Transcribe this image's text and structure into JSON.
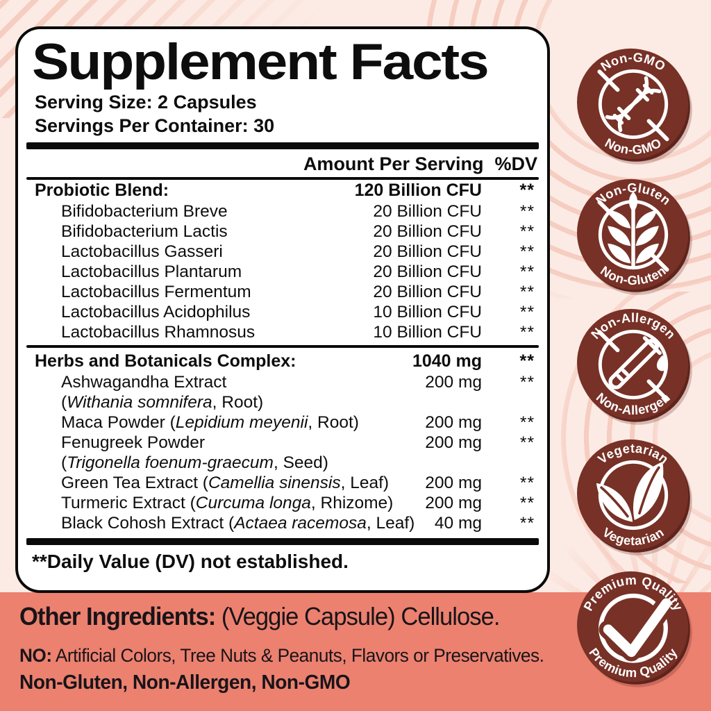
{
  "colors": {
    "page_bg": "#fcebe4",
    "decor": "#f6cdc1",
    "coral_bg": "#ec8170",
    "badge_brown": "#773126",
    "panel_border": "#0a0a0a",
    "text": "#0d0d0d"
  },
  "label": {
    "title": "Supplement Facts",
    "serving_size": "Serving Size: 2 Capsules",
    "servings_per_container": "Servings Per Container: 30",
    "amount_per_serving": "Amount Per Serving",
    "dv_header": "%DV",
    "sections": [
      {
        "header": {
          "name": "Probiotic Blend:",
          "amount": "120 Billion CFU",
          "dv": "**"
        },
        "rows": [
          {
            "name": [
              {
                "t": "Bifidobacterium Breve"
              }
            ],
            "amount": "20 Billion CFU",
            "dv": "**"
          },
          {
            "name": [
              {
                "t": "Bifidobacterium Lactis"
              }
            ],
            "amount": "20 Billion CFU",
            "dv": "**"
          },
          {
            "name": [
              {
                "t": "Lactobacillus Gasseri"
              }
            ],
            "amount": "20 Billion CFU",
            "dv": "**"
          },
          {
            "name": [
              {
                "t": "Lactobacillus Plantarum"
              }
            ],
            "amount": "20 Billion CFU",
            "dv": "**"
          },
          {
            "name": [
              {
                "t": "Lactobacillus Fermentum"
              }
            ],
            "amount": "20 Billion CFU",
            "dv": "**"
          },
          {
            "name": [
              {
                "t": "Lactobacillus Acidophilus"
              }
            ],
            "amount": "10 Billion CFU",
            "dv": "**"
          },
          {
            "name": [
              {
                "t": "Lactobacillus Rhamnosus"
              }
            ],
            "amount": "10 Billion CFU",
            "dv": "**"
          }
        ]
      },
      {
        "header": {
          "name": "Herbs and Botanicals Complex:",
          "amount": "1040 mg",
          "dv": "**"
        },
        "rows": [
          {
            "name": [
              {
                "t": "Ashwagandha Extract"
              }
            ],
            "amount": "200 mg",
            "dv": "**"
          },
          {
            "name": [
              {
                "t": "("
              },
              {
                "t": "Withania somnifera",
                "i": true
              },
              {
                "t": ", Root)"
              }
            ]
          },
          {
            "name": [
              {
                "t": "Maca Powder ("
              },
              {
                "t": "Lepidium meyenii",
                "i": true
              },
              {
                "t": ", Root)"
              }
            ],
            "amount": "200 mg",
            "dv": "**"
          },
          {
            "name": [
              {
                "t": "Fenugreek Powder"
              }
            ],
            "amount": "200 mg",
            "dv": "**"
          },
          {
            "name": [
              {
                "t": "("
              },
              {
                "t": "Trigonella foenum-graecum",
                "i": true
              },
              {
                "t": ", Seed)"
              }
            ]
          },
          {
            "name": [
              {
                "t": "Green Tea Extract ("
              },
              {
                "t": "Camellia sinensis",
                "i": true
              },
              {
                "t": ", Leaf)"
              }
            ],
            "amount": "200 mg",
            "dv": "**"
          },
          {
            "name": [
              {
                "t": "Turmeric Extract ("
              },
              {
                "t": "Curcuma longa",
                "i": true
              },
              {
                "t": ", Rhizome)"
              }
            ],
            "amount": "200 mg",
            "dv": "**"
          },
          {
            "name": [
              {
                "t": "Black Cohosh Extract ("
              },
              {
                "t": "Actaea racemosa",
                "i": true
              },
              {
                "t": ", Leaf)"
              }
            ],
            "amount": "40 mg",
            "dv": "**"
          }
        ]
      }
    ],
    "footnote": "**Daily Value (DV) not established."
  },
  "badges": [
    {
      "name": "non-gmo",
      "top_text": "Non-GMO",
      "bottom_text": "Non-GMO",
      "icon": "dna-icon",
      "slash": true
    },
    {
      "name": "non-gluten",
      "top_text": "Non-Gluten",
      "bottom_text": "Non-Gluten",
      "icon": "wheat-icon",
      "slash": true
    },
    {
      "name": "non-allergen",
      "top_text": "Non-Allergen",
      "bottom_text": "Non-Allergen",
      "icon": "test-tube-icon",
      "slash": true
    },
    {
      "name": "vegetarian",
      "top_text": "Vegetarian",
      "bottom_text": "Vegetarian",
      "icon": "leaf-icon",
      "slash": false
    },
    {
      "name": "premium-quality",
      "top_text": "Premium Quality",
      "bottom_text": "Premium Quality",
      "icon": "check-icon",
      "slash": false
    }
  ],
  "bottom": {
    "other_ingredients_label": "Other Ingredients:",
    "other_ingredients_value": "(Veggie Capsule) Cellulose.",
    "no_label": "NO:",
    "no_value": "Artificial Colors, Tree Nuts & Peanuts, Flavors or Preservatives.",
    "claims": "Non-Gluten, Non-Allergen, Non-GMO"
  }
}
